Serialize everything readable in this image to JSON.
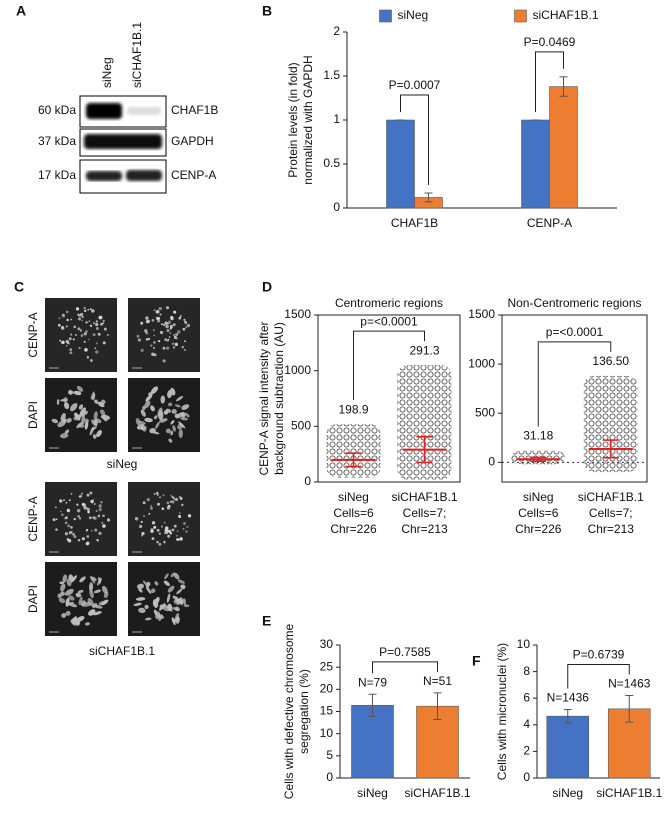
{
  "panel_labels": [
    "A",
    "B",
    "C",
    "D",
    "E",
    "F"
  ],
  "blot": {
    "lanes": [
      "siNeg",
      "siCHAF1B.1"
    ],
    "markers": [
      "60 kDa",
      "37 kDa",
      "17 kDa"
    ],
    "proteins": [
      "CHAF1B",
      "GAPDH",
      "CENP-A"
    ]
  },
  "micrographs": {
    "groups": [
      {
        "condition": "siNeg",
        "channels": [
          "CENP-A",
          "DAPI"
        ]
      },
      {
        "condition": "siCHAF1B.1",
        "channels": [
          "CENP-A",
          "DAPI"
        ]
      }
    ]
  },
  "chart_data": [
    {
      "type": "bar",
      "y_label": [
        "Protein levels (in fold)",
        "normalized with GAPDH"
      ],
      "categories": [
        "CHAF1B",
        "CENP-A"
      ],
      "series": [
        {
          "name": "siNeg",
          "color": "#4472c4",
          "values": [
            1,
            1
          ],
          "errors": [
            0,
            0
          ]
        },
        {
          "name": "siCHAF1B.1",
          "color": "#ed7d31",
          "values": [
            0.12,
            1.38
          ],
          "errors": [
            0.05,
            0.11
          ]
        }
      ],
      "p_labels": [
        "P=0.0007",
        "P=0.0469"
      ],
      "ylim": [
        0,
        2
      ],
      "yticks": [
        0,
        0.5,
        1,
        1.5,
        2
      ],
      "legend": "top"
    },
    {
      "type": "dotplot",
      "title": "Centromeric regions",
      "y_label": [
        "CENP-A signal intensity after",
        "background subtraction (AU)"
      ],
      "categories": [
        [
          "siNeg",
          "Cells=6",
          "Chr=226"
        ],
        [
          "siCHAF1B.1",
          "Cells=7;",
          "Chr=213"
        ]
      ],
      "values": [
        198.9,
        291.3
      ],
      "value_labels": [
        "198.9",
        "291.3"
      ],
      "sd": [
        60,
        115
      ],
      "min": [
        40,
        20
      ],
      "max": [
        520,
        1050
      ],
      "p_label": "p=<0.0001",
      "ylim": [
        0,
        1500
      ],
      "yticks": [
        0,
        500,
        1000,
        1500
      ],
      "color": "#e02020"
    },
    {
      "type": "dotplot",
      "title": "Non-Centromeric regions",
      "categories": [
        [
          "siNeg",
          "Cells=6",
          "Chr=226"
        ],
        [
          "siCHAF1B.1",
          "Cells=7;",
          "Chr=213"
        ]
      ],
      "values": [
        31.18,
        136.5
      ],
      "value_labels": [
        "31.18",
        "136.50"
      ],
      "sd": [
        20,
        90
      ],
      "min": [
        -20,
        -100
      ],
      "max": [
        120,
        880
      ],
      "p_label": "p=<0.0001",
      "ylim": [
        -200,
        1500
      ],
      "yticks": [
        0,
        500,
        1000,
        1500
      ],
      "zero_line": true,
      "color": "#e02020"
    },
    {
      "type": "bar",
      "y_label": [
        "Cells with defective chromosome",
        "segregation (%)"
      ],
      "categories": [
        "siNeg",
        "siCHAF1B.1"
      ],
      "series": [
        {
          "colors": [
            "#4472c4",
            "#ed7d31"
          ],
          "values": [
            16.4,
            16.2
          ],
          "errors": [
            2.5,
            3
          ]
        }
      ],
      "n_labels": [
        "N=79",
        "N=51"
      ],
      "p_label": "P=0.7585",
      "ylim": [
        0,
        30
      ],
      "yticks": [
        0,
        5,
        10,
        15,
        20,
        25,
        30
      ]
    },
    {
      "type": "bar",
      "y_label": [
        "Cells with micronuclei (%)"
      ],
      "categories": [
        "siNeg",
        "siCHAF1B.1"
      ],
      "series": [
        {
          "colors": [
            "#4472c4",
            "#ed7d31"
          ],
          "values": [
            4.65,
            5.2
          ],
          "errors": [
            0.5,
            1
          ]
        }
      ],
      "n_labels": [
        "N=1436",
        "N=1463"
      ],
      "p_label": "P=0.6739",
      "ylim": [
        0,
        10
      ],
      "yticks": [
        0,
        2,
        4,
        6,
        8,
        10
      ]
    }
  ]
}
